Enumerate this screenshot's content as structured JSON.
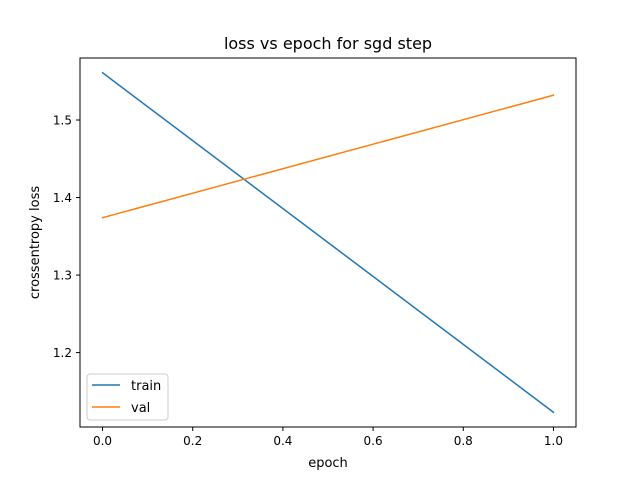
{
  "chart_data": {
    "type": "line",
    "title": "loss vs epoch for sgd step",
    "xlabel": "epoch",
    "ylabel": "crossentropy loss",
    "xlim": [
      -0.05,
      1.05
    ],
    "ylim": [
      1.104,
      1.58
    ],
    "x_ticks": [
      0.0,
      0.2,
      0.4,
      0.6,
      0.8,
      1.0
    ],
    "x_tick_labels": [
      "0.0",
      "0.2",
      "0.4",
      "0.6",
      "0.8",
      "1.0"
    ],
    "y_ticks": [
      1.2,
      1.3,
      1.4,
      1.5
    ],
    "y_tick_labels": [
      "1.2",
      "1.3",
      "1.4",
      "1.5"
    ],
    "grid": false,
    "legend_position": "lower-left",
    "series": [
      {
        "name": "train",
        "color": "#1f77b4",
        "x": [
          0.0,
          1.0
        ],
        "y": [
          1.561,
          1.123
        ]
      },
      {
        "name": "val",
        "color": "#ff7f0e",
        "x": [
          0.0,
          1.0
        ],
        "y": [
          1.374,
          1.532
        ]
      }
    ]
  }
}
